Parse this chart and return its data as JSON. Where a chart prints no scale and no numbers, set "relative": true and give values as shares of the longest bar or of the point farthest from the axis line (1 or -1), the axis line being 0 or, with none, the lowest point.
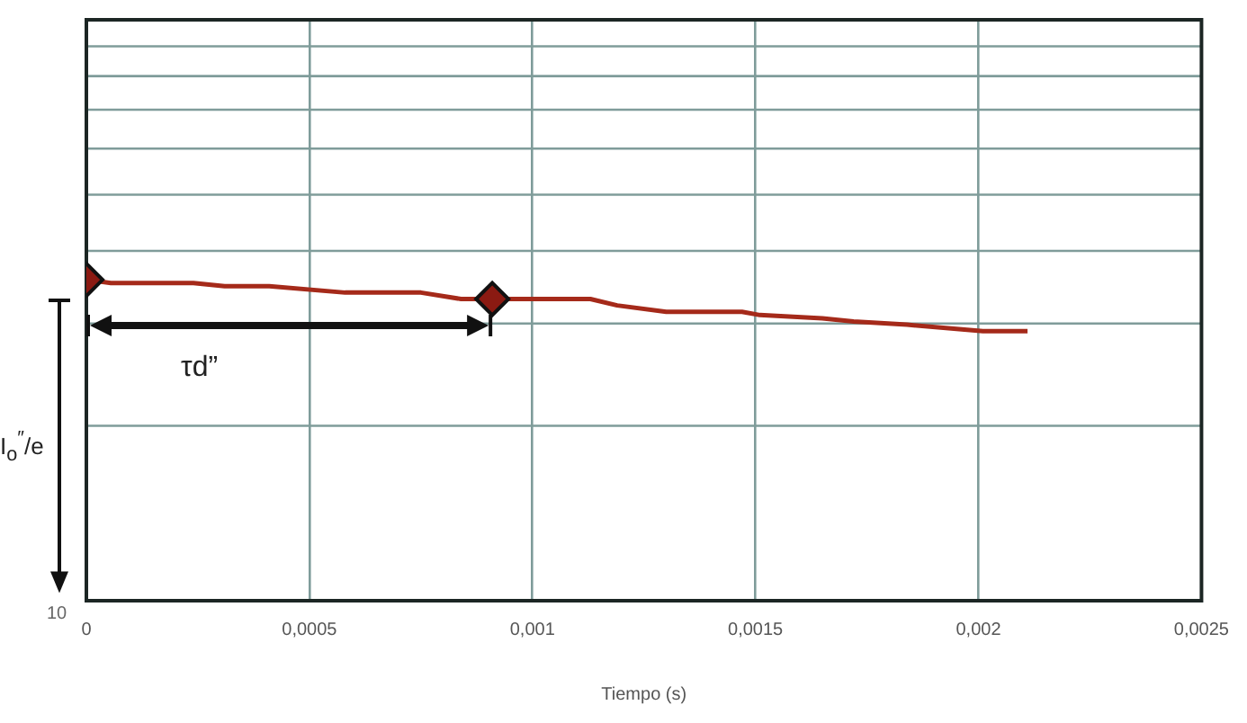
{
  "chart_data": {
    "type": "line",
    "relative": true,
    "xlabel": "Tiempo (s)",
    "xlim": [
      0,
      0.0025
    ],
    "xticks": [
      0,
      {
        "value": 0.0005,
        "label": "0,0005"
      },
      {
        "value": 0.001,
        "label": "0,001"
      },
      {
        "value": 0.0015,
        "label": "0,0015"
      },
      {
        "value": 0.002,
        "label": "0,002"
      },
      {
        "value": 0.0025,
        "label": "0,0025"
      }
    ],
    "grid": true,
    "legend": false,
    "series": [
      {
        "color": "#a52a1a",
        "marker": "none",
        "x": [
          0,
          5.5e-05,
          0.00024,
          0.00031,
          0.00041,
          0.00058,
          0.00075,
          0.00084,
          0.00091,
          0.001,
          0.00113,
          0.00119,
          0.0013,
          0.00147,
          0.00151,
          0.00165,
          0.00172,
          0.00184,
          0.00201,
          0.00211
        ],
        "values": [
          1,
          0.99,
          0.99,
          0.98,
          0.98,
          0.96,
          0.96,
          0.94,
          0.94,
          0.94,
          0.94,
          0.92,
          0.9,
          0.9,
          0.89,
          0.88,
          0.87,
          0.86,
          0.84,
          0.84
        ]
      },
      {
        "type": "scatter",
        "color": "#8b1a12",
        "marker": "diamond",
        "x": [
          0,
          0.00091
        ],
        "values": [
          1,
          0.94
        ]
      }
    ],
    "annotations": [
      "τd”",
      "I$_{o}$$^{″}$/e",
      "10"
    ]
  }
}
